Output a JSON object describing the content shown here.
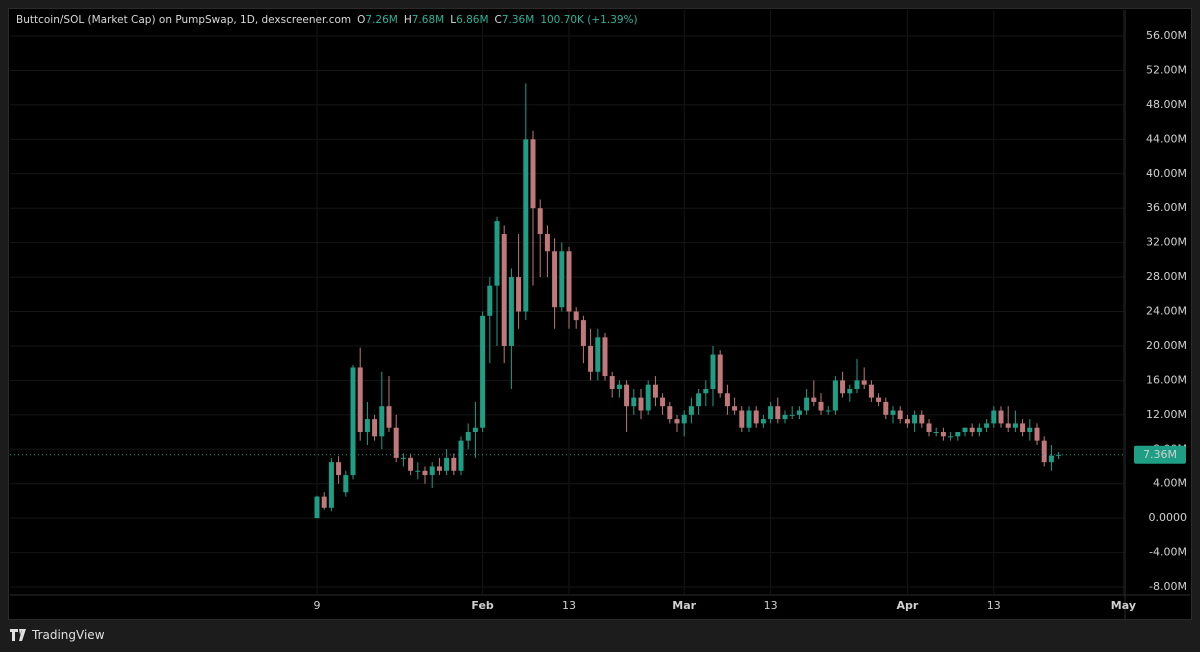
{
  "chart_data": {
    "type": "candlestick",
    "title": "Buttcoin/SOL (Market Cap) on PumpSwap, 1D, dexscreener.com",
    "legend": [
      {
        "key": "O",
        "value": "7.26M"
      },
      {
        "key": "H",
        "value": "7.68M"
      },
      {
        "key": "L",
        "value": "6.86M"
      },
      {
        "key": "C",
        "value": "7.36M"
      }
    ],
    "change": "100.70K (+1.39%)",
    "categories": [
      "9",
      null,
      null,
      null,
      null,
      null,
      null,
      null,
      null,
      null,
      null,
      null,
      null,
      null,
      null,
      null,
      null,
      null,
      null,
      null,
      null,
      null,
      null,
      "Feb",
      null,
      null,
      null,
      null,
      null,
      null,
      null,
      null,
      null,
      null,
      null,
      "13",
      null,
      null,
      null,
      null,
      null,
      null,
      null,
      null,
      null,
      null,
      null,
      null,
      null,
      null,
      null,
      "Mar",
      null,
      null,
      null,
      null,
      null,
      null,
      null,
      null,
      null,
      null,
      null,
      "13",
      null,
      null,
      null,
      null,
      null,
      null,
      null,
      null,
      null,
      null,
      null,
      null,
      null,
      null,
      null,
      null,
      null,
      null,
      "Apr",
      null,
      null,
      null,
      null,
      null,
      null,
      null,
      null,
      null,
      null,
      null,
      "13",
      null,
      null,
      null,
      null,
      null,
      null,
      null,
      null,
      null,
      null,
      null,
      null,
      null,
      null,
      null,
      null,
      null,
      "May"
    ],
    "open": [
      0,
      2.5,
      1.2,
      6.5,
      3,
      5,
      17.5,
      10,
      11.5,
      9.5,
      13,
      10.5,
      7,
      7,
      5.5,
      5.5,
      5,
      6,
      5.5,
      7,
      5.5,
      9,
      10,
      10.5,
      23.5,
      27,
      33,
      20,
      28,
      24,
      44,
      36,
      33,
      31,
      24.5,
      31,
      24,
      23,
      20,
      17,
      21,
      16.5,
      15,
      15.5,
      13,
      14,
      12.5,
      15.5,
      14,
      13,
      11.5,
      11,
      12,
      13,
      14.5,
      15,
      19,
      14.5,
      13,
      12.5,
      10.5,
      12.5,
      11,
      11.5,
      13,
      11.5,
      12,
      12,
      12.5,
      14,
      13.5,
      12.5,
      12.5,
      16,
      14.5,
      15,
      16,
      15.5,
      14,
      13.5,
      12,
      12.5,
      11.5,
      11,
      12,
      11,
      10,
      10,
      9.5,
      9.5,
      10,
      10.5,
      10,
      10.5,
      11,
      12.5,
      11,
      10.5,
      11,
      10,
      10.5,
      9,
      6.5,
      7.26,
      null,
      null,
      null,
      null,
      null,
      null,
      null,
      null,
      null
    ],
    "high": [
      2.6,
      3,
      7,
      7.2,
      5.5,
      17.8,
      19.8,
      13.5,
      12,
      17,
      16.5,
      12,
      7.5,
      7.5,
      6.5,
      6,
      6.5,
      7,
      8,
      7.5,
      9.5,
      11,
      13.5,
      24,
      28,
      35,
      34,
      29,
      33,
      50.5,
      45,
      37,
      34,
      32.5,
      32,
      31.5,
      24.5,
      23.5,
      22,
      22,
      21.5,
      17,
      16,
      16,
      15,
      15,
      16,
      16.5,
      14.5,
      13.5,
      12,
      12.5,
      14,
      15,
      16,
      20,
      19.5,
      15.5,
      14,
      13,
      13,
      13,
      12,
      13.5,
      14,
      12.5,
      13,
      13,
      15,
      16,
      14.5,
      13,
      16.5,
      17,
      15.5,
      18.5,
      17.5,
      16,
      14.5,
      14,
      13,
      13,
      12,
      12.5,
      12.5,
      11.5,
      10.5,
      10.5,
      10,
      10,
      10.5,
      11,
      11,
      11.5,
      13,
      13,
      13,
      12.5,
      11.5,
      11.5,
      11,
      9.5,
      8.5,
      7.68,
      null,
      null,
      null,
      null,
      null,
      null,
      null,
      null,
      null
    ],
    "low": [
      0,
      1,
      0.8,
      4,
      2.5,
      4.5,
      9,
      8.5,
      9,
      8,
      10,
      6.5,
      6,
      5,
      4.5,
      4,
      3.5,
      5,
      5,
      5,
      5,
      8,
      7,
      10,
      18,
      20,
      18,
      15,
      22,
      23,
      27,
      28,
      28,
      22,
      24,
      22,
      22,
      18,
      16,
      16,
      16,
      14,
      14,
      10,
      12,
      11.5,
      12,
      13,
      12,
      11,
      10,
      9.5,
      11,
      12,
      13,
      13,
      14,
      12,
      12,
      10,
      10,
      10.5,
      10.5,
      11,
      11,
      11,
      11.5,
      11.5,
      12,
      13,
      12,
      12,
      12,
      14,
      13.5,
      14.5,
      15,
      13.5,
      13,
      11.5,
      11,
      11,
      10.5,
      10,
      10.5,
      9.5,
      9.5,
      9,
      9,
      9,
      9.5,
      9.5,
      9.5,
      10,
      10.5,
      10.5,
      10,
      10,
      9.5,
      9,
      8.5,
      6,
      5.5,
      6.86,
      null,
      null,
      null,
      null,
      null,
      null,
      null,
      null,
      null
    ],
    "close": [
      2.5,
      1.2,
      6.5,
      5,
      5,
      17.5,
      10,
      11.5,
      9.5,
      13,
      10.5,
      7,
      7,
      5.5,
      5.5,
      5,
      6,
      5.5,
      7,
      5.5,
      9,
      10,
      10.5,
      23.5,
      27,
      34.5,
      20,
      28,
      24,
      44,
      36,
      33,
      31,
      24.5,
      31,
      24,
      23,
      20,
      17,
      21,
      16.5,
      15,
      15.5,
      13,
      14,
      12.5,
      15.5,
      14,
      13,
      11.5,
      11,
      12,
      13,
      14.5,
      15,
      19,
      14.5,
      13,
      12.5,
      10.5,
      12.5,
      11,
      11.5,
      13,
      11.5,
      12,
      12,
      12.5,
      14,
      13.5,
      12.5,
      12.5,
      16,
      14.5,
      15,
      16,
      15.5,
      14,
      13.5,
      12,
      12.5,
      11.5,
      11,
      12,
      11,
      10,
      10,
      9.5,
      9.5,
      10,
      10.5,
      10,
      10.5,
      11,
      12.5,
      11,
      10.5,
      11,
      10,
      10.5,
      9,
      6.5,
      7.26,
      7.36,
      null,
      null,
      null,
      null,
      null,
      null,
      null,
      null,
      null
    ],
    "up_color": "#1f9e86",
    "down_color": "#c0787a",
    "last_price": 7.36,
    "last_price_label": "7.36M",
    "ylim": [
      -8,
      56
    ],
    "yticks": [
      {
        "value": -8,
        "label": "-8.00M"
      },
      {
        "value": -4,
        "label": "-4.00M"
      },
      {
        "value": 0,
        "label": "0.0000"
      },
      {
        "value": 4,
        "label": "4.00M"
      },
      {
        "value": 8,
        "label": "8.00M"
      },
      {
        "value": 12,
        "label": "12.00M"
      },
      {
        "value": 16,
        "label": "16.00M"
      },
      {
        "value": 20,
        "label": "20.00M"
      },
      {
        "value": 24,
        "label": "24.00M"
      },
      {
        "value": 28,
        "label": "28.00M"
      },
      {
        "value": 32,
        "label": "32.00M"
      },
      {
        "value": 36,
        "label": "36.00M"
      },
      {
        "value": 40,
        "label": "40.00M"
      },
      {
        "value": 44,
        "label": "44.00M"
      },
      {
        "value": 48,
        "label": "48.00M"
      },
      {
        "value": 52,
        "label": "52.00M"
      },
      {
        "value": 56,
        "label": "56.00M"
      }
    ],
    "grid": true
  },
  "footer": {
    "brand": "TradingView"
  }
}
